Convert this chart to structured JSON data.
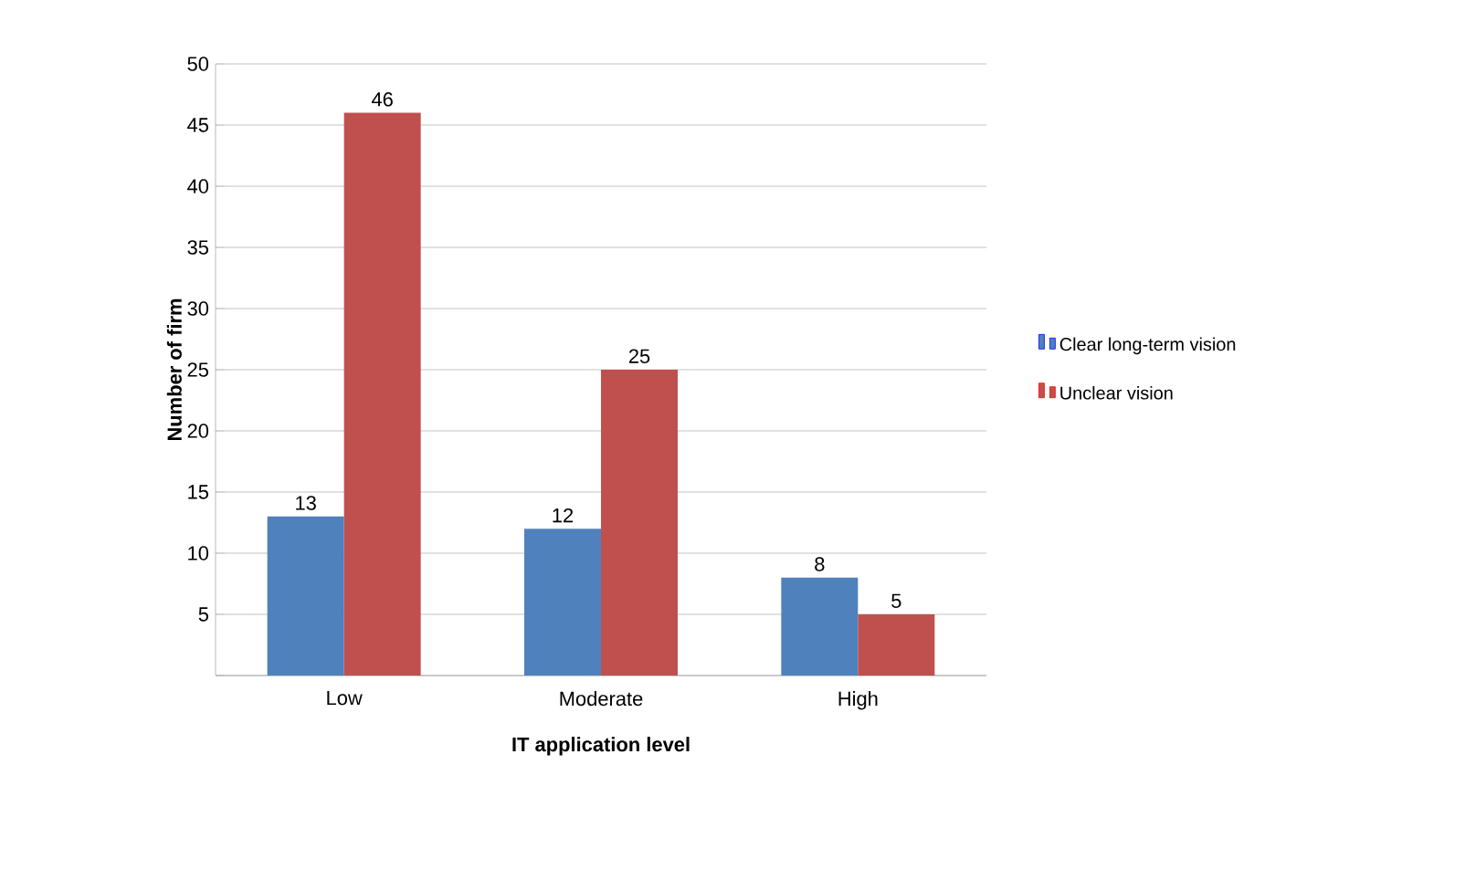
{
  "chart_data": {
    "type": "bar",
    "categories": [
      "Low",
      "Moderate",
      "High"
    ],
    "series": [
      {
        "name": "Clear long-term vision",
        "color": "#4f81bd",
        "values": [
          13,
          12,
          8
        ]
      },
      {
        "name": "Unclear vision",
        "color": "#c0504d",
        "values": [
          46,
          25,
          5
        ]
      }
    ],
    "xlabel": "IT application level",
    "ylabel": "Number of firm",
    "ylim": [
      0,
      50
    ],
    "yticks": [
      {
        "value": 0,
        "label": null
      },
      5,
      10,
      15,
      20,
      25,
      30,
      35,
      40,
      45,
      50
    ],
    "grid": "y",
    "legend": "right",
    "data_labels": true
  }
}
